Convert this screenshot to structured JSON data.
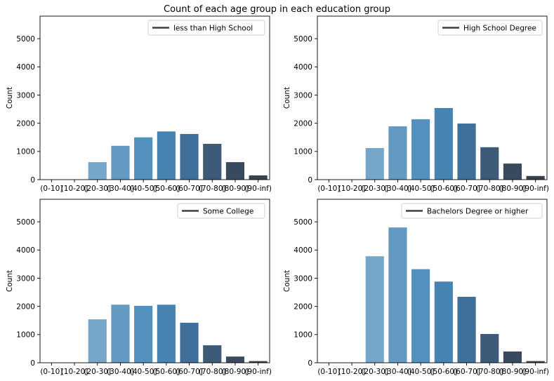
{
  "figure": {
    "title": "Count of each age group in each education group"
  },
  "chart_data": [
    {
      "type": "bar",
      "categories": [
        "(0-10]",
        "(10-20]",
        "(20-30]",
        "(30-40]",
        "(40-50]",
        "(50-60]",
        "(60-70]",
        "(70-80]",
        "(80-90]",
        "(90-inf)"
      ],
      "values": [
        0,
        0,
        620,
        1200,
        1500,
        1710,
        1620,
        1270,
        620,
        150
      ],
      "legend": "less than High School",
      "ylabel": "Count",
      "ylim": [
        0,
        5800
      ],
      "yticks": [
        0,
        1000,
        2000,
        3000,
        4000,
        5000
      ],
      "legend_position": "top-right"
    },
    {
      "type": "bar",
      "categories": [
        "(0-10]",
        "(10-20]",
        "(20-30]",
        "(30-40]",
        "(40-50]",
        "(50-60]",
        "(60-70]",
        "(70-80]",
        "(80-90]",
        "(90-inf)"
      ],
      "values": [
        0,
        0,
        1120,
        1890,
        2140,
        2540,
        1990,
        1150,
        570,
        130
      ],
      "legend": "High School Degree",
      "ylabel": "Count",
      "ylim": [
        0,
        5800
      ],
      "yticks": [
        0,
        1000,
        2000,
        3000,
        4000,
        5000
      ],
      "legend_position": "top-right"
    },
    {
      "type": "bar",
      "categories": [
        "(0-10]",
        "(10-20]",
        "(20-30]",
        "(30-40]",
        "(40-50]",
        "(50-60]",
        "(60-70]",
        "(70-80]",
        "(80-90]",
        "(90-inf)"
      ],
      "values": [
        0,
        0,
        1540,
        2060,
        2020,
        2060,
        1420,
        620,
        220,
        60
      ],
      "legend": "Some College",
      "ylabel": "Count",
      "ylim": [
        0,
        5800
      ],
      "yticks": [
        0,
        1000,
        2000,
        3000,
        4000,
        5000
      ],
      "legend_position": "top-right"
    },
    {
      "type": "bar",
      "categories": [
        "(0-10]",
        "(10-20]",
        "(20-30]",
        "(30-40]",
        "(40-50]",
        "(50-60]",
        "(60-70]",
        "(70-80]",
        "(80-90]",
        "(90-inf)"
      ],
      "values": [
        0,
        0,
        3780,
        4800,
        3320,
        2880,
        2340,
        1020,
        400,
        60
      ],
      "legend": "Bachelors Degree or higher",
      "ylabel": "Count",
      "ylim": [
        0,
        5800
      ],
      "yticks": [
        0,
        1000,
        2000,
        3000,
        4000,
        5000
      ],
      "legend_position": "top-right"
    }
  ],
  "colors": {
    "bars": [
      "#8ebbd9",
      "#82b3d6",
      "#76a7ca",
      "#6499c2",
      "#5291bd",
      "#4784b2",
      "#3f709a",
      "#3d5a78",
      "#3a4a5e",
      "#39434f"
    ],
    "legend_line": "#3f3f3f"
  }
}
